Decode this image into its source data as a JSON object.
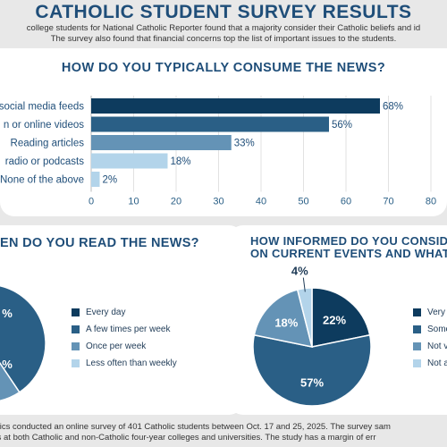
{
  "title": "CATHOLIC STUDENT SURVEY RESULTS",
  "intro": {
    "line1": "college students for National Catholic Reporter found that a majority consider their Catholic beliefs and id",
    "line2": "The survey also found that financial concerns top the list of important issues to the students."
  },
  "footer": {
    "line1": "rtics conducted an online survey of 401 Catholic students between Oct. 17 and 25, 2025. The survey sam",
    "line2": "ts at both Catholic and non-Catholic four-year colleges and universities. The study has a margin of err"
  },
  "colors": {
    "navy": "#0d3b5e",
    "dark_blue": "#2a5f86",
    "mid_blue": "#6493b6",
    "light_blue": "#b3d4ea"
  },
  "chart_data": [
    {
      "type": "bar",
      "orientation": "horizontal",
      "title": "HOW DO YOU TYPICALLY CONSUME THE NEWS?",
      "categories": [
        "social media feeds",
        "n or online videos",
        "Reading articles",
        "radio or podcasts",
        "None of the above"
      ],
      "values": [
        68,
        56,
        33,
        18,
        2
      ],
      "value_labels": [
        "68%",
        "56%",
        "33%",
        "18%",
        "2%"
      ],
      "bar_colors": [
        "#0d3b5e",
        "#2a5f86",
        "#6493b6",
        "#b3d4ea",
        "#b3d4ea"
      ],
      "xlim": [
        0,
        80
      ],
      "x_ticks": [
        "0",
        "10",
        "20",
        "30",
        "40",
        "50",
        "60",
        "70",
        "80"
      ],
      "grid": true
    },
    {
      "type": "pie",
      "title": "EN DO YOU READ THE NEWS?",
      "labels": [
        "Every day",
        "A few times per week",
        "Once per week",
        "Less often than weekly"
      ],
      "values": [
        null,
        null,
        null,
        null
      ],
      "visible_value_labels": [
        "%",
        "%"
      ],
      "colors": [
        "#0d3b5e",
        "#2a5f86",
        "#6493b6",
        "#b3d4ea"
      ]
    },
    {
      "type": "pie",
      "title_line1": "HOW INFORMED DO YOU CONSID",
      "title_line2": "ON CURRENT EVENTS AND WHAT'S",
      "labels": [
        "Very",
        "Some",
        "Not v",
        "Not a"
      ],
      "values": [
        22,
        57,
        18,
        4
      ],
      "value_labels": [
        "22%",
        "57%",
        "18%",
        "4%"
      ],
      "colors": [
        "#0d3b5e",
        "#2a5f86",
        "#6493b6",
        "#b3d4ea"
      ]
    }
  ]
}
